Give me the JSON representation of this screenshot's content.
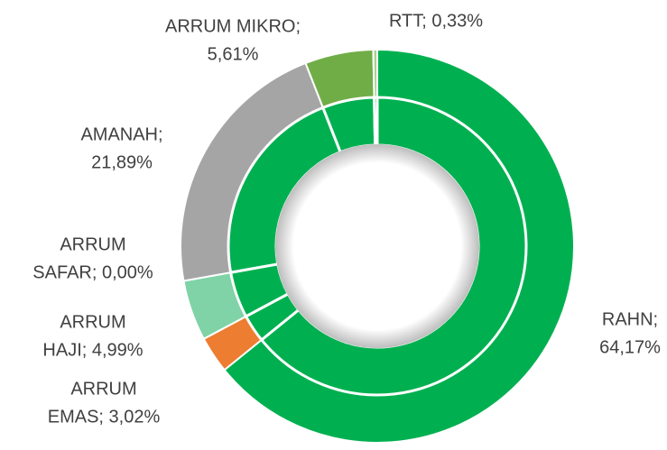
{
  "chart_data": {
    "type": "double-donut",
    "values": [
      64.17,
      3.02,
      4.99,
      0.0,
      21.89,
      5.61,
      0.33
    ],
    "value_labels": [
      [
        "RAHN;",
        "64,17%"
      ],
      [
        "ARRUM",
        "EMAS; 3,02%"
      ],
      [
        "ARRUM",
        "HAJI; 4,99%"
      ],
      [
        "ARRUM",
        "SAFAR; 0,00%"
      ],
      [
        "AMANAH;",
        "21,89%"
      ],
      [
        "ARRUM MIKRO;",
        "5,61%"
      ],
      [
        "RTT; 0,33%"
      ]
    ],
    "colors": [
      "#00b050",
      "#ed7d31",
      "#7fd3a6",
      "#a5a5a5",
      "#a5a5a5",
      "#70ad47",
      "#a9d18e"
    ],
    "inner_color": "#00b050"
  }
}
